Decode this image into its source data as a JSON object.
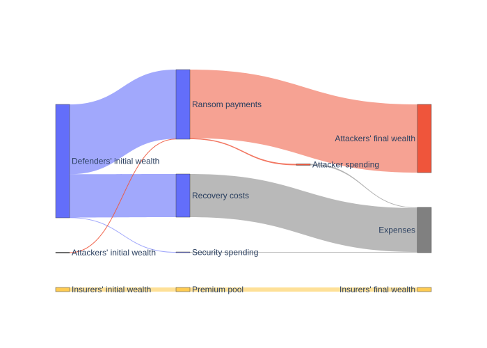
{
  "chart_data": {
    "type": "sankey",
    "nodes": [
      {
        "id": "defenders_initial",
        "label": "Defenders' initial wealth",
        "color": "#636efa",
        "column": 0
      },
      {
        "id": "attackers_initial",
        "label": "Attackers' initial wealth",
        "color": "#2a2a2a",
        "column": 0
      },
      {
        "id": "insurers_initial",
        "label": "Insurers' initial wealth",
        "color": "#fecb52",
        "column": 0
      },
      {
        "id": "ransom",
        "label": "Ransom payments",
        "color": "#636efa",
        "column": 1
      },
      {
        "id": "recovery",
        "label": "Recovery costs",
        "color": "#636efa",
        "column": 1
      },
      {
        "id": "security",
        "label": "Security spending",
        "color": "#636efa",
        "column": 1
      },
      {
        "id": "premium",
        "label": "Premium pool",
        "color": "#fecb52",
        "column": 1
      },
      {
        "id": "attacker_spending",
        "label": "Attacker spending",
        "color": "#ef553b",
        "column": 2
      },
      {
        "id": "attackers_final",
        "label": "Attackers' final wealth",
        "color": "#ef553b",
        "column": 3
      },
      {
        "id": "expenses",
        "label": "Expenses",
        "color": "#808080",
        "column": 3
      },
      {
        "id": "insurers_final",
        "label": "Insurers' final wealth",
        "color": "#fecb52",
        "column": 3
      }
    ],
    "links": [
      {
        "source": "defenders_initial",
        "target": "ransom",
        "value": 100,
        "color": "rgba(99,110,250,0.6)"
      },
      {
        "source": "defenders_initial",
        "target": "recovery",
        "value": 62,
        "color": "rgba(99,110,250,0.6)"
      },
      {
        "source": "defenders_initial",
        "target": "security",
        "value": 0.5,
        "color": "rgba(99,110,250,0.6)"
      },
      {
        "source": "attackers_initial",
        "target": "ransom",
        "value": 0.5,
        "color": "rgba(239,85,59,0.9)"
      },
      {
        "source": "ransom",
        "target": "attackers_final",
        "value": 98,
        "color": "rgba(239,85,59,0.55)"
      },
      {
        "source": "ransom",
        "target": "attacker_spending",
        "value": 1.5,
        "color": "rgba(239,85,59,0.8)"
      },
      {
        "source": "attacker_spending",
        "target": "expenses",
        "value": 1,
        "color": "rgba(128,128,128,0.6)"
      },
      {
        "source": "recovery",
        "target": "expenses",
        "value": 62,
        "color": "rgba(128,128,128,0.55)"
      },
      {
        "source": "security",
        "target": "expenses",
        "value": 1,
        "color": "rgba(128,128,128,0.5)"
      },
      {
        "source": "insurers_initial",
        "target": "premium",
        "value": 6,
        "color": "rgba(254,203,82,0.6)"
      },
      {
        "source": "premium",
        "target": "insurers_final",
        "value": 6,
        "color": "rgba(254,203,82,0.6)"
      }
    ]
  }
}
